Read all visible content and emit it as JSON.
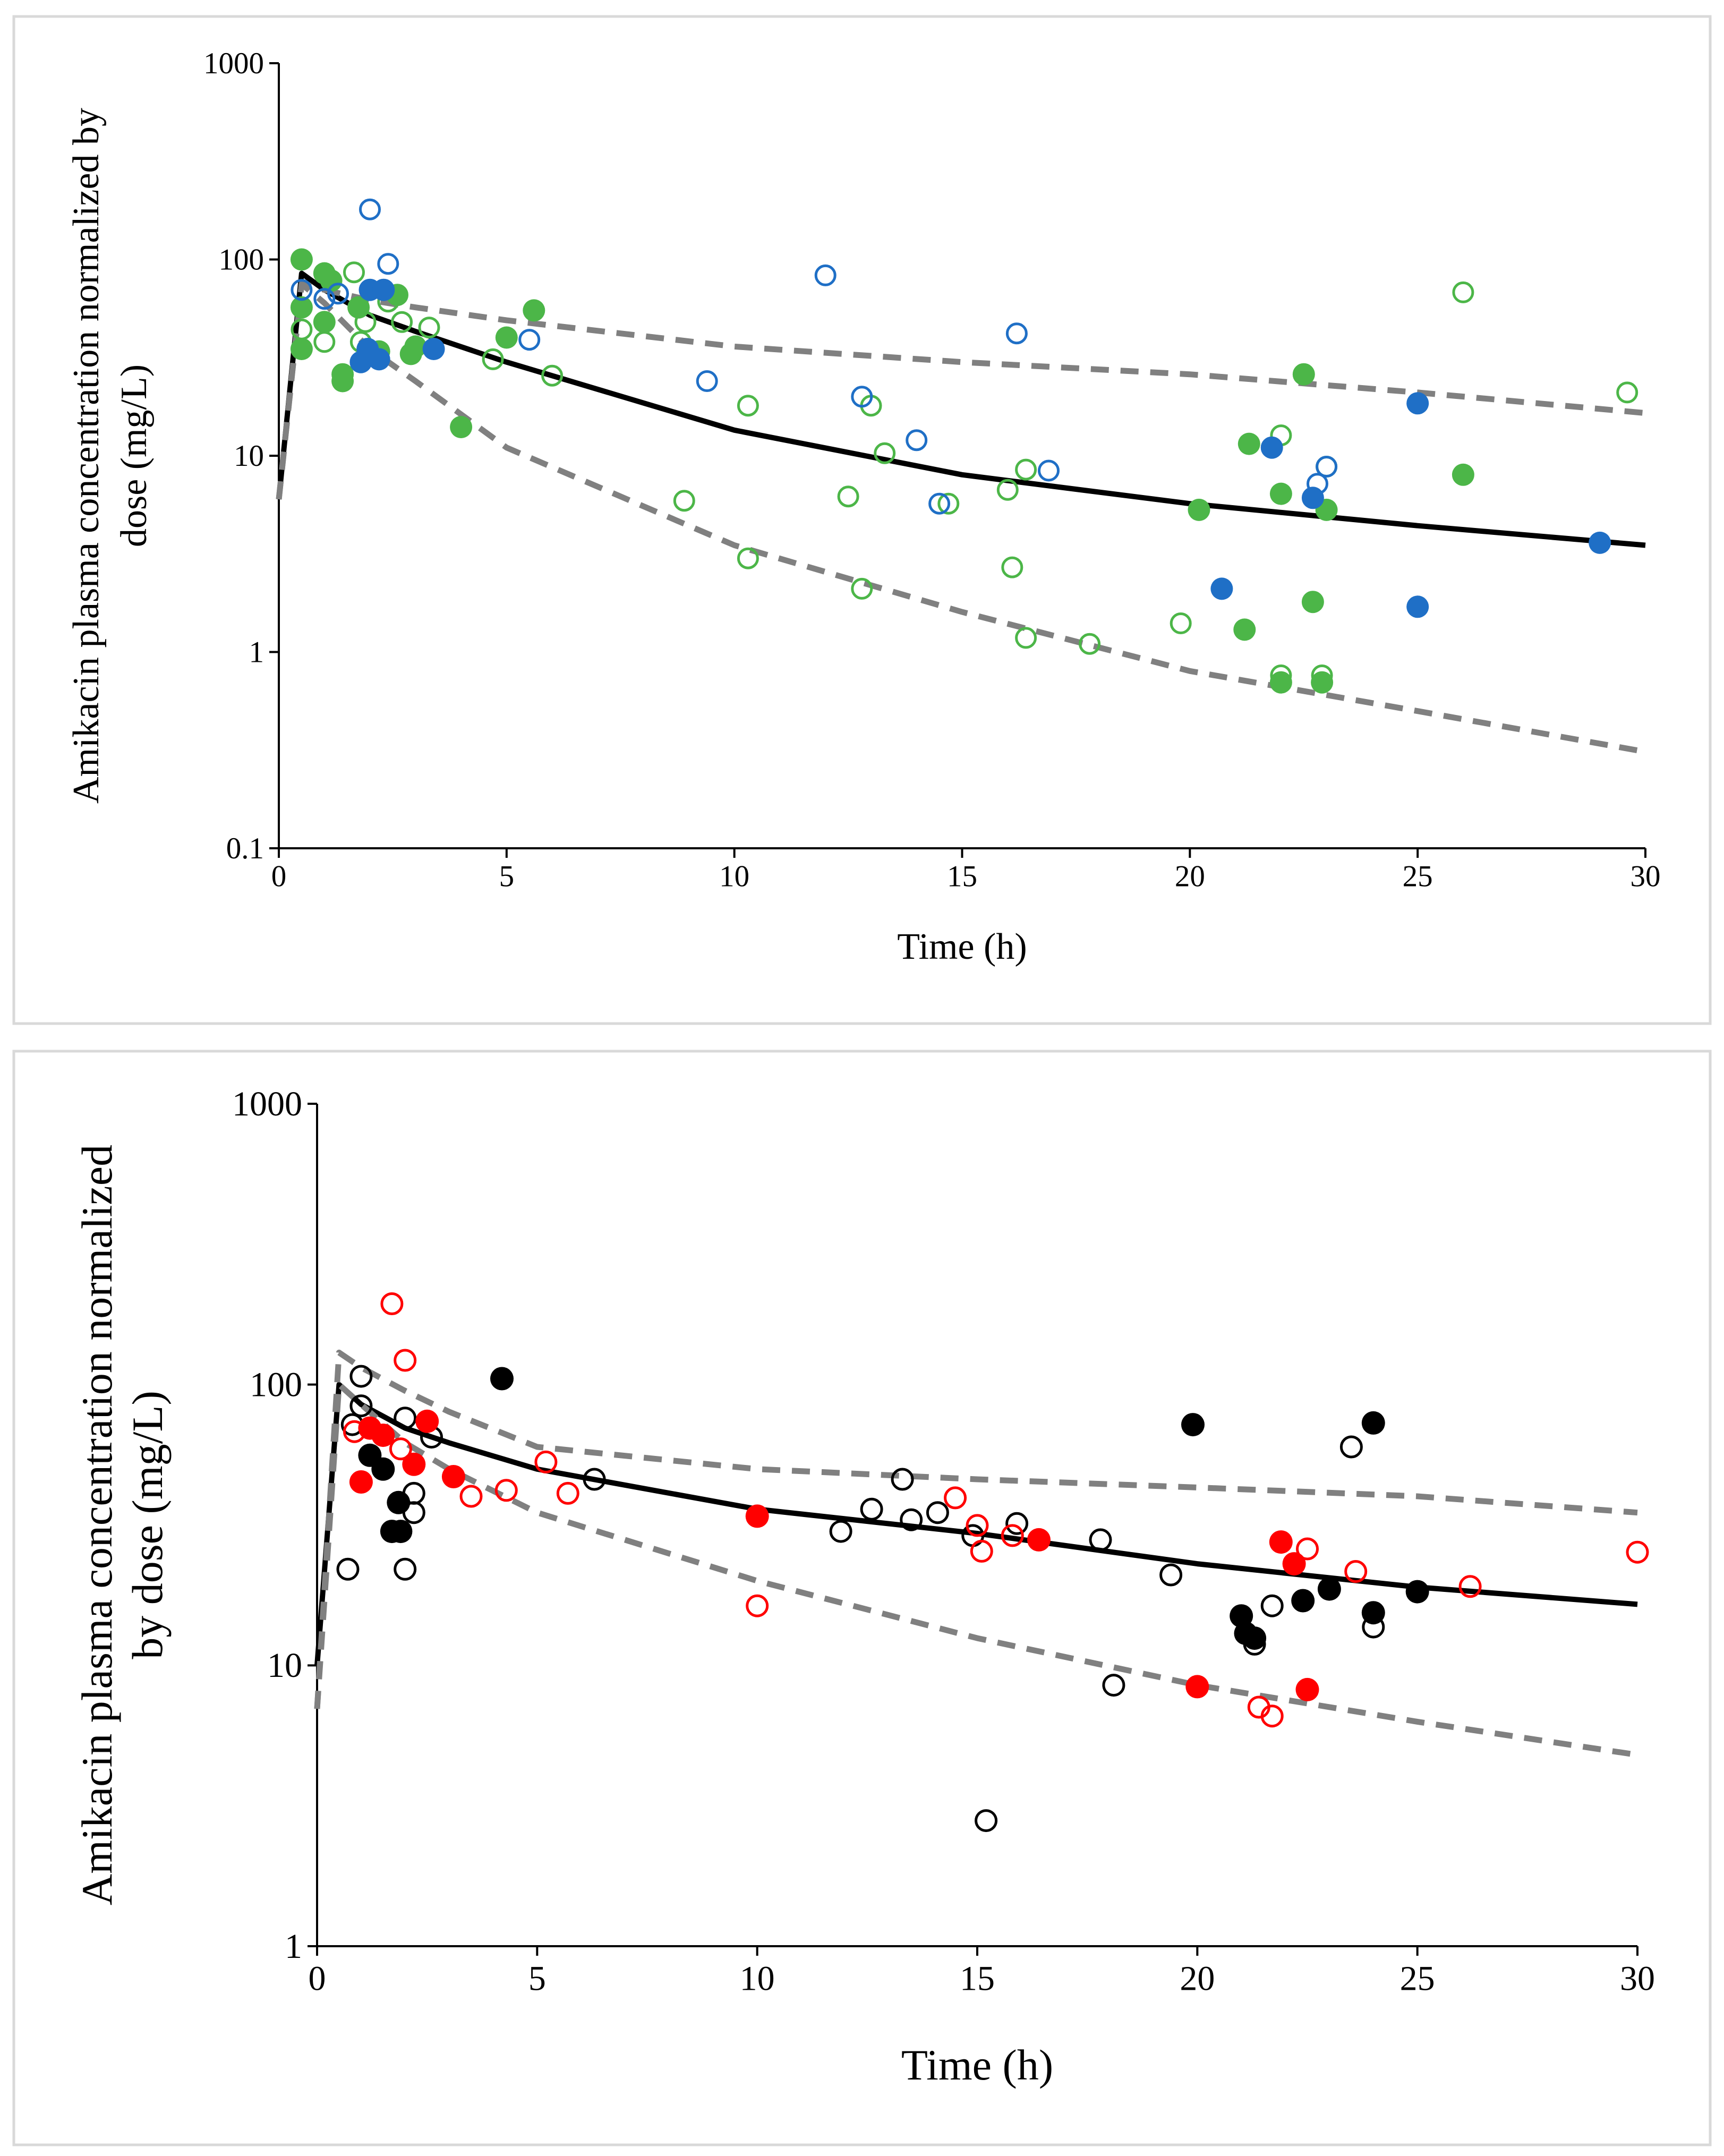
{
  "chart_data": [
    {
      "type": "scatter",
      "xlabel": "Time (h)",
      "ylabel_lines": [
        "Amikacin plasma concentration normalized by",
        "dose (mg/L)"
      ],
      "yscale": "log",
      "xlim": [
        0,
        30
      ],
      "ylim": [
        0.1,
        1000
      ],
      "xticks": [
        "0",
        "5",
        "10",
        "15",
        "20",
        "25",
        "30"
      ],
      "yticks": [
        "0.1",
        "1",
        "10",
        "100",
        "1000"
      ],
      "grid": false,
      "colors": {
        "green": "#4cb648",
        "blue": "#1f6fc6",
        "median": "#000000",
        "pi": "#808080"
      },
      "lines": [
        {
          "name": "median",
          "style": "solid",
          "t": [
            0,
            0.5,
            1,
            2,
            3,
            5,
            10,
            15,
            20,
            25,
            30
          ],
          "c": [
            6,
            85,
            70,
            52,
            43,
            30,
            13.5,
            8,
            5.7,
            4.4,
            3.5
          ]
        },
        {
          "name": "upper",
          "style": "dashed",
          "t": [
            0,
            0.5,
            1,
            2,
            3,
            5,
            10,
            15,
            20,
            25,
            30
          ],
          "c": [
            6,
            75,
            70,
            62,
            57,
            49,
            36,
            30,
            26,
            21,
            16.5
          ]
        },
        {
          "name": "lower",
          "style": "dashed",
          "t": [
            0,
            0.5,
            1,
            2,
            3,
            5,
            10,
            15,
            20,
            25,
            30
          ],
          "c": [
            6,
            75,
            60,
            35,
            24,
            11,
            3.5,
            1.6,
            0.8,
            0.5,
            0.31
          ]
        }
      ],
      "series": [
        {
          "name": "green-filled",
          "color": "green",
          "filled": true,
          "points": [
            [
              0.5,
              100
            ],
            [
              0.5,
              57
            ],
            [
              0.5,
              35
            ],
            [
              1.0,
              85
            ],
            [
              1.15,
              78
            ],
            [
              1.0,
              48
            ],
            [
              1.4,
              26
            ],
            [
              1.4,
              24
            ],
            [
              1.75,
              57
            ],
            [
              2.2,
              34
            ],
            [
              2.6,
              66
            ],
            [
              2.9,
              33
            ],
            [
              3.0,
              36
            ],
            [
              4.0,
              14
            ],
            [
              5.0,
              40
            ],
            [
              5.6,
              55
            ],
            [
              20.2,
              5.3
            ],
            [
              21.3,
              11.5
            ],
            [
              21.2,
              1.3
            ],
            [
              22.0,
              6.4
            ],
            [
              22.0,
              0.7
            ],
            [
              22.5,
              26
            ],
            [
              22.7,
              1.8
            ],
            [
              22.9,
              0.7
            ],
            [
              23.0,
              5.3
            ],
            [
              26.0,
              8
            ]
          ]
        },
        {
          "name": "green-open",
          "color": "green",
          "filled": false,
          "points": [
            [
              0.5,
              44
            ],
            [
              1.0,
              38
            ],
            [
              1.65,
              86
            ],
            [
              1.8,
              38
            ],
            [
              1.9,
              48
            ],
            [
              2.4,
              61
            ],
            [
              2.7,
              48
            ],
            [
              3.3,
              45
            ],
            [
              4.7,
              31
            ],
            [
              6.0,
              25.6
            ],
            [
              8.9,
              5.9
            ],
            [
              10.3,
              3.0
            ],
            [
              10.3,
              18
            ],
            [
              12.5,
              6.2
            ],
            [
              12.8,
              2.1
            ],
            [
              13.0,
              18
            ],
            [
              13.3,
              10.3
            ],
            [
              14.7,
              5.7
            ],
            [
              16.0,
              6.7
            ],
            [
              16.1,
              2.7
            ],
            [
              16.4,
              8.5
            ],
            [
              16.4,
              1.18
            ],
            [
              17.8,
              1.1
            ],
            [
              19.8,
              1.4
            ],
            [
              22.0,
              12.7
            ],
            [
              22.0,
              0.76
            ],
            [
              22.9,
              0.76
            ],
            [
              23.0,
              8.8
            ],
            [
              26.0,
              68
            ],
            [
              29.6,
              21
            ]
          ]
        },
        {
          "name": "blue-filled",
          "color": "blue",
          "filled": true,
          "points": [
            [
              1.8,
              30
            ],
            [
              1.95,
              35
            ],
            [
              2.0,
              70
            ],
            [
              2.3,
              70
            ],
            [
              2.2,
              31
            ],
            [
              3.4,
              35
            ],
            [
              20.7,
              2.1
            ],
            [
              21.8,
              11
            ],
            [
              22.7,
              6.1
            ],
            [
              25.0,
              18.5
            ],
            [
              25.0,
              1.7
            ],
            [
              29.0,
              3.6
            ]
          ]
        },
        {
          "name": "blue-open",
          "color": "blue",
          "filled": false,
          "points": [
            [
              2.0,
              180
            ],
            [
              2.4,
              95
            ],
            [
              0.5,
              70
            ],
            [
              1.0,
              63
            ],
            [
              1.3,
              67
            ],
            [
              5.5,
              39
            ],
            [
              9.4,
              24
            ],
            [
              12.0,
              83
            ],
            [
              12.8,
              20
            ],
            [
              14.0,
              12
            ],
            [
              14.5,
              5.7
            ],
            [
              16.2,
              42
            ],
            [
              16.9,
              8.4
            ],
            [
              22.8,
              7.2
            ],
            [
              23.0,
              8.8
            ]
          ]
        }
      ]
    },
    {
      "type": "scatter",
      "xlabel": "Time (h)",
      "ylabel_lines": [
        "Amikacin plasma concentration normalized",
        "by dose (mg/L)"
      ],
      "yscale": "log",
      "xlim": [
        0,
        30
      ],
      "ylim": [
        1,
        1000
      ],
      "xticks": [
        "0",
        "5",
        "10",
        "15",
        "20",
        "25",
        "30"
      ],
      "yticks": [
        "1",
        "10",
        "100",
        "1000"
      ],
      "grid": false,
      "colors": {
        "black": "#000000",
        "red": "#ff0000",
        "median": "#000000",
        "pi": "#808080"
      },
      "lines": [
        {
          "name": "median",
          "style": "solid",
          "t": [
            0,
            0.5,
            1,
            2,
            3,
            5,
            10,
            15,
            20,
            25,
            30
          ],
          "c": [
            10,
            100,
            85,
            70,
            62,
            50,
            36,
            29.5,
            23,
            19,
            16.5
          ]
        },
        {
          "name": "upper",
          "style": "dashed",
          "t": [
            0,
            0.5,
            1,
            2,
            3,
            5,
            10,
            15,
            20,
            25,
            30
          ],
          "c": [
            7,
            130,
            115,
            95,
            80,
            60,
            50,
            46,
            43,
            40,
            35
          ]
        },
        {
          "name": "lower",
          "style": "dashed",
          "t": [
            0,
            0.5,
            1,
            2,
            3,
            5,
            10,
            15,
            20,
            25,
            30
          ],
          "c": [
            7,
            100,
            85,
            62,
            50,
            35,
            20,
            12.5,
            8.5,
            6.3,
            4.8
          ]
        }
      ],
      "series": [
        {
          "name": "black-filled",
          "color": "black",
          "filled": true,
          "points": [
            [
              1.2,
              56
            ],
            [
              1.5,
              50
            ],
            [
              1.7,
              30
            ],
            [
              1.85,
              38
            ],
            [
              1.9,
              30
            ],
            [
              4.2,
              105
            ],
            [
              19.9,
              72
            ],
            [
              21.0,
              15
            ],
            [
              21.1,
              13
            ],
            [
              21.3,
              12.5
            ],
            [
              22.4,
              17
            ],
            [
              23.0,
              18.7
            ],
            [
              24.0,
              73
            ],
            [
              24.0,
              15.4
            ],
            [
              25.0,
              18.3
            ]
          ]
        },
        {
          "name": "black-open",
          "color": "black",
          "filled": false,
          "points": [
            [
              0.7,
              22
            ],
            [
              1.0,
              107
            ],
            [
              1.0,
              84
            ],
            [
              0.8,
              72
            ],
            [
              2.0,
              22
            ],
            [
              2.0,
              76
            ],
            [
              2.2,
              41
            ],
            [
              2.2,
              35
            ],
            [
              2.6,
              65
            ],
            [
              6.3,
              46
            ],
            [
              11.9,
              30
            ],
            [
              12.6,
              36
            ],
            [
              13.3,
              46
            ],
            [
              13.5,
              33
            ],
            [
              14.1,
              35
            ],
            [
              14.9,
              29
            ],
            [
              15.2,
              2.8
            ],
            [
              15.9,
              32
            ],
            [
              17.8,
              28
            ],
            [
              18.1,
              8.5
            ],
            [
              19.4,
              21
            ],
            [
              21.7,
              16.3
            ],
            [
              21.3,
              11.9
            ],
            [
              23.5,
              60
            ],
            [
              24.0,
              13.7
            ]
          ]
        },
        {
          "name": "red-filled",
          "color": "red",
          "filled": true,
          "points": [
            [
              1.0,
              45
            ],
            [
              1.2,
              70
            ],
            [
              1.5,
              66
            ],
            [
              2.2,
              52
            ],
            [
              2.5,
              74
            ],
            [
              3.1,
              47
            ],
            [
              10.0,
              34
            ],
            [
              16.4,
              28
            ],
            [
              20.0,
              8.4
            ],
            [
              21.9,
              27.5
            ],
            [
              22.2,
              23
            ],
            [
              22.5,
              8.2
            ]
          ]
        },
        {
          "name": "red-open",
          "color": "red",
          "filled": false,
          "points": [
            [
              1.7,
              194
            ],
            [
              2.0,
              122
            ],
            [
              0.85,
              68
            ],
            [
              1.9,
              59
            ],
            [
              3.5,
              40
            ],
            [
              4.3,
              42
            ],
            [
              5.2,
              53
            ],
            [
              5.7,
              41
            ],
            [
              10.0,
              16.3
            ],
            [
              14.5,
              39.5
            ],
            [
              15.0,
              31.5
            ],
            [
              15.1,
              25.5
            ],
            [
              15.8,
              29
            ],
            [
              21.4,
              7.1
            ],
            [
              21.7,
              6.6
            ],
            [
              22.5,
              26
            ],
            [
              23.6,
              21.6
            ],
            [
              26.2,
              19.1
            ],
            [
              30.0,
              25.3
            ]
          ]
        }
      ]
    }
  ]
}
